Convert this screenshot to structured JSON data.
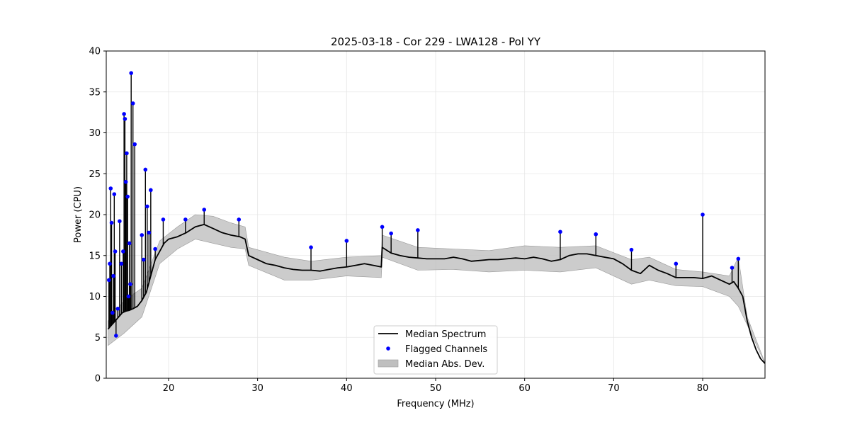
{
  "chart_data": {
    "type": "line",
    "title": "2025-03-18 - Cor 229 - LWA128 - Pol YY",
    "xlabel": "Frequency (MHz)",
    "ylabel": "Power (CPU)",
    "xlim": [
      13,
      87
    ],
    "ylim": [
      0,
      40
    ],
    "xticks": [
      "20",
      "30",
      "40",
      "50",
      "60",
      "70",
      "80"
    ],
    "yticks": [
      "0",
      "5",
      "10",
      "15",
      "20",
      "25",
      "30",
      "35",
      "40"
    ],
    "grid": true,
    "legend_position": "bottom-center",
    "legend": [
      "Median Spectrum",
      "Flagged Channels",
      "Median Abs. Dev."
    ],
    "colors": {
      "median": "#000000",
      "flagged": "#0000ff",
      "mad": "#bfbfbf"
    },
    "series": [
      {
        "name": "Median Spectrum",
        "x": [
          13.2,
          13.6,
          14.0,
          14.4,
          14.8,
          15.2,
          15.6,
          16.0,
          16.5,
          17.0,
          17.5,
          18.0,
          18.5,
          19.0,
          19.5,
          20.0,
          21.0,
          22.0,
          23.0,
          24.0,
          25.0,
          26.0,
          27.0,
          28.0,
          28.6,
          29.0,
          30.0,
          31.0,
          32.0,
          33.0,
          34.0,
          35.0,
          36.0,
          37.0,
          38.0,
          39.0,
          40.0,
          41.0,
          42.0,
          43.0,
          43.9,
          44.0,
          45.0,
          46.0,
          47.0,
          48.0,
          49.0,
          50.0,
          51.0,
          52.0,
          53.0,
          54.0,
          55.0,
          56.0,
          57.0,
          58.0,
          59.0,
          60.0,
          61.0,
          62.0,
          63.0,
          64.0,
          65.0,
          66.0,
          67.0,
          68.0,
          69.0,
          70.0,
          71.0,
          72.0,
          73.0,
          74.0,
          75.0,
          76.0,
          77.0,
          78.0,
          79.0,
          80.0,
          81.0,
          82.0,
          83.0,
          83.5,
          84.0,
          84.5,
          85.0,
          85.5,
          86.0,
          86.5,
          87.0
        ],
        "values": [
          6.0,
          6.5,
          7.0,
          7.5,
          8.0,
          8.2,
          8.3,
          8.5,
          8.8,
          9.5,
          10.5,
          12.5,
          14.5,
          15.5,
          16.5,
          17.0,
          17.3,
          17.8,
          18.5,
          18.8,
          18.3,
          17.8,
          17.5,
          17.3,
          17.0,
          15.0,
          14.5,
          14.0,
          13.8,
          13.5,
          13.3,
          13.2,
          13.2,
          13.1,
          13.3,
          13.5,
          13.6,
          13.8,
          14.0,
          13.8,
          13.6,
          16.0,
          15.3,
          15.0,
          14.8,
          14.7,
          14.6,
          14.6,
          14.6,
          14.8,
          14.6,
          14.3,
          14.4,
          14.5,
          14.5,
          14.6,
          14.7,
          14.6,
          14.8,
          14.6,
          14.3,
          14.5,
          15.0,
          15.2,
          15.2,
          15.0,
          14.8,
          14.6,
          14.0,
          13.2,
          12.8,
          13.8,
          13.2,
          12.8,
          12.3,
          12.3,
          12.3,
          12.2,
          12.5,
          12.0,
          11.5,
          11.8,
          11.0,
          10.0,
          7.0,
          5.0,
          3.5,
          2.4,
          1.8
        ]
      },
      {
        "name": "Flagged Channels",
        "x": [
          13.3,
          13.4,
          13.5,
          13.6,
          13.7,
          13.8,
          13.9,
          14.0,
          14.1,
          14.3,
          14.5,
          14.7,
          14.9,
          15.0,
          15.1,
          15.2,
          15.3,
          15.4,
          15.5,
          15.6,
          15.7,
          15.8,
          16.0,
          16.2,
          17.0,
          17.2,
          17.4,
          17.6,
          17.8,
          18.0,
          18.5,
          19.4,
          21.9,
          24.0,
          27.9,
          36.0,
          40.0,
          44.0,
          45.0,
          48.0,
          64.0,
          68.0,
          72.0,
          77.0,
          80.0,
          83.3,
          84.0
        ],
        "values": [
          12.0,
          14.0,
          23.2,
          19.0,
          8.0,
          12.5,
          22.5,
          15.5,
          5.2,
          8.5,
          19.2,
          14.0,
          15.5,
          32.3,
          31.7,
          24.0,
          27.5,
          22.2,
          10.0,
          16.5,
          11.5,
          37.3,
          33.6,
          28.6,
          17.5,
          14.5,
          25.5,
          21.0,
          17.8,
          23.0,
          15.8,
          19.4,
          19.4,
          20.6,
          19.4,
          16.0,
          16.8,
          18.5,
          17.7,
          18.1,
          17.9,
          17.6,
          15.7,
          14.0,
          20.0,
          13.5,
          14.6
        ]
      },
      {
        "name": "Median Abs. Dev.",
        "x": [
          13.2,
          15.0,
          17.0,
          19.0,
          21.0,
          23.0,
          25.0,
          27.0,
          28.6,
          29.0,
          33.0,
          36.0,
          40.0,
          43.9,
          44.0,
          48.0,
          52.0,
          56.0,
          60.0,
          64.0,
          68.0,
          72.0,
          74.0,
          77.0,
          80.0,
          83.0,
          84.0,
          85.0,
          87.0
        ],
        "upper": [
          7.0,
          9.5,
          11.0,
          16.8,
          18.5,
          20.0,
          19.8,
          19.0,
          18.5,
          16.0,
          14.8,
          14.3,
          14.8,
          15.0,
          17.5,
          16.0,
          15.8,
          15.6,
          16.2,
          16.0,
          16.2,
          14.5,
          14.8,
          13.3,
          13.0,
          12.5,
          14.8,
          7.5,
          1.9
        ],
        "lower": [
          4.0,
          5.5,
          7.5,
          14.0,
          15.8,
          17.0,
          16.5,
          16.0,
          15.8,
          13.8,
          12.0,
          12.0,
          12.5,
          12.3,
          14.8,
          13.2,
          13.3,
          13.0,
          13.2,
          13.0,
          13.5,
          11.5,
          12.0,
          11.3,
          11.2,
          10.0,
          8.8,
          6.5,
          1.8
        ]
      }
    ]
  }
}
